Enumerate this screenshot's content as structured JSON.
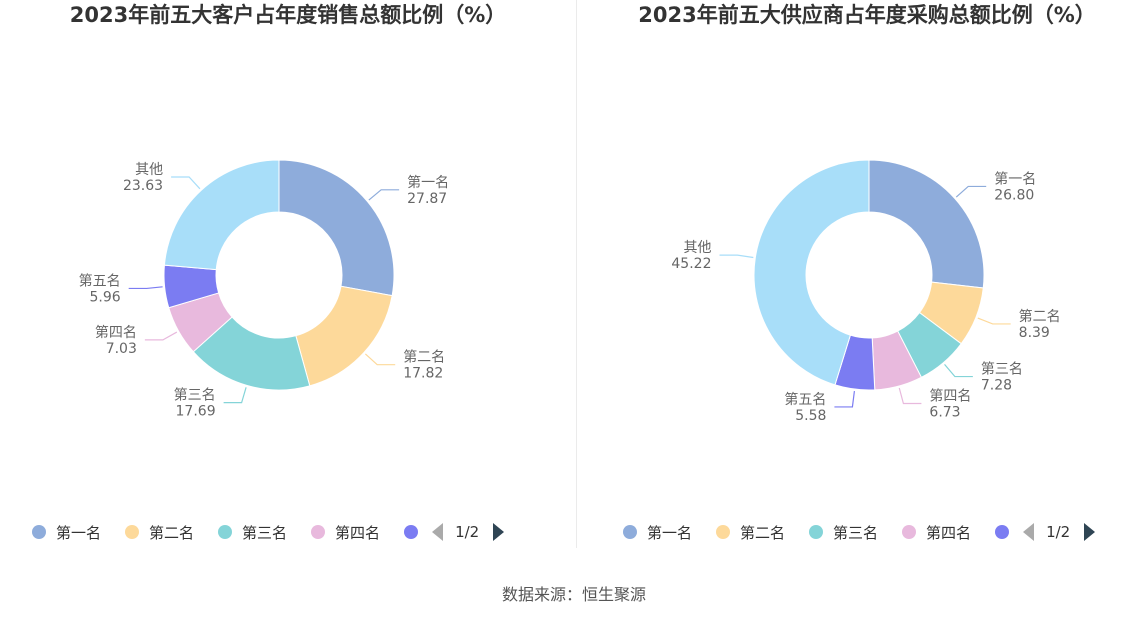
{
  "chart_data": [
    {
      "type": "pie",
      "title": "2023年前五大客户占年度销售总额比例（%）",
      "categories": [
        "第一名",
        "第二名",
        "第三名",
        "第四名",
        "第五名",
        "其他"
      ],
      "values": [
        27.87,
        17.82,
        17.69,
        7.03,
        5.96,
        23.63
      ],
      "value_labels": [
        "27.87",
        "17.82",
        "17.69",
        "7.03",
        "5.96",
        "23.63"
      ],
      "colors": [
        "#8eacdb",
        "#fdd99a",
        "#84d4d8",
        "#e8b9dd",
        "#7b7cf2",
        "#a8def9"
      ],
      "donut": true,
      "legend_position": "bottom",
      "legend_visible": [
        "第一名",
        "第二名",
        "第三名",
        "第四名"
      ],
      "pager": "1/2"
    },
    {
      "type": "pie",
      "title": "2023年前五大供应商占年度采购总额比例（%）",
      "categories": [
        "第一名",
        "第二名",
        "第三名",
        "第四名",
        "第五名",
        "其他"
      ],
      "values": [
        26.8,
        8.39,
        7.28,
        6.73,
        5.58,
        45.22
      ],
      "value_labels": [
        "26.80",
        "8.39",
        "7.28",
        "6.73",
        "5.58",
        "45.22"
      ],
      "colors": [
        "#8eacdb",
        "#fdd99a",
        "#84d4d8",
        "#e8b9dd",
        "#7b7cf2",
        "#a8def9"
      ],
      "donut": true,
      "legend_position": "bottom",
      "legend_visible": [
        "第一名",
        "第二名",
        "第三名",
        "第四名"
      ],
      "pager": "1/2"
    }
  ],
  "footer": {
    "source": "数据来源：恒生聚源"
  }
}
